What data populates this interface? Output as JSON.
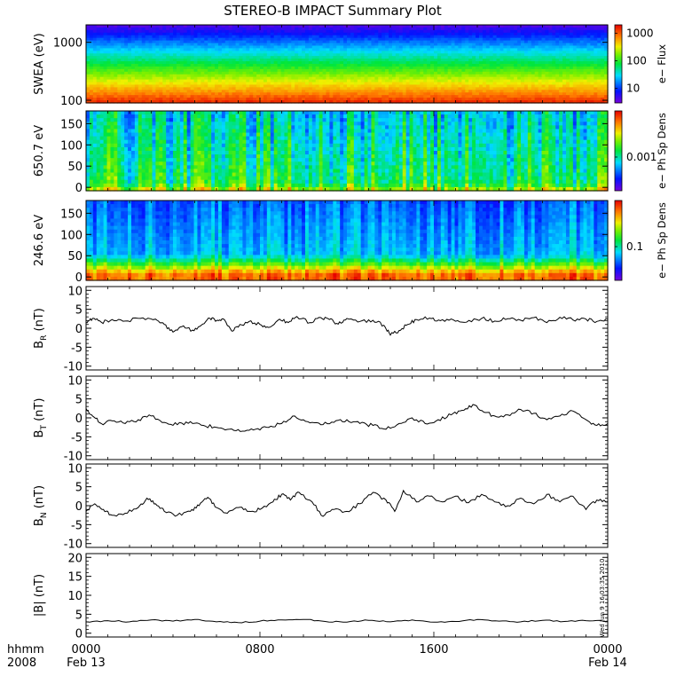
{
  "chart_data": {
    "title": "STEREO-B IMPACT Summary Plot",
    "x_axis": {
      "corner_label_top": "hhmm",
      "corner_label_bottom": "2008",
      "range_hours": [
        0,
        24
      ],
      "ticks": [
        {
          "hour": 0,
          "time": "0000",
          "date": "Feb 13"
        },
        {
          "hour": 8,
          "time": "0800",
          "date": ""
        },
        {
          "hour": 16,
          "time": "1600",
          "date": ""
        },
        {
          "hour": 24,
          "time": "0000",
          "date": "Feb 14"
        }
      ]
    },
    "timestamp": "Wed Jun  9 16:03:35 2010",
    "panels": [
      {
        "type": "heatmap",
        "ylabel": "SWEA (eV)",
        "yscale": "log",
        "ylim": [
          90,
          2000
        ],
        "yticks": [
          {
            "value": 100,
            "label": "100"
          },
          {
            "value": 1000,
            "label": "1000"
          }
        ],
        "colorbar": {
          "label": "e− Flux",
          "scale": "log",
          "range": [
            3,
            2000
          ],
          "ticks": [
            {
              "value": 10,
              "label": "10"
            },
            {
              "value": 100,
              "label": "100"
            },
            {
              "value": 1000,
              "label": "1000"
            }
          ]
        }
      },
      {
        "type": "heatmap",
        "ylabel": "650.7 eV",
        "yscale": "linear",
        "ylim": [
          -8,
          180
        ],
        "yticks": [
          {
            "value": 0,
            "label": "0"
          },
          {
            "value": 50,
            "label": "50"
          },
          {
            "value": 100,
            "label": "100"
          },
          {
            "value": 150,
            "label": "150"
          }
        ],
        "colorbar": {
          "label": "e− Ph Sp Dens",
          "scale": "log",
          "ticks": [
            {
              "value": 0.001,
              "label": "0.001"
            }
          ]
        }
      },
      {
        "type": "heatmap",
        "ylabel": "246.6 eV",
        "yscale": "linear",
        "ylim": [
          -8,
          180
        ],
        "yticks": [
          {
            "value": 0,
            "label": "0"
          },
          {
            "value": 50,
            "label": "50"
          },
          {
            "value": 100,
            "label": "100"
          },
          {
            "value": 150,
            "label": "150"
          }
        ],
        "colorbar": {
          "label": "e− Ph Sp Dens",
          "scale": "log",
          "ticks": [
            {
              "value": 0.1,
              "label": "0.1"
            }
          ]
        }
      },
      {
        "type": "line",
        "ylabel": "B_R (nT)",
        "ylabel_main": "B",
        "ylabel_sub": "R",
        "ylabel_unit": "(nT)",
        "ylim": [
          -11,
          11
        ],
        "yticks": [
          -10,
          -5,
          0,
          5,
          10
        ],
        "series_keypoints": [
          [
            0.0,
            1.5
          ],
          [
            0.3,
            2.6
          ],
          [
            0.7,
            1.6
          ],
          [
            1.2,
            2.3
          ],
          [
            1.8,
            1.9
          ],
          [
            2.5,
            2.6
          ],
          [
            3.2,
            2.4
          ],
          [
            3.6,
            1.0
          ],
          [
            4.0,
            -1.0
          ],
          [
            4.4,
            0.4
          ],
          [
            4.9,
            -0.5
          ],
          [
            5.3,
            0.8
          ],
          [
            5.7,
            2.6
          ],
          [
            6.0,
            2.0
          ],
          [
            6.3,
            2.5
          ],
          [
            6.7,
            -0.7
          ],
          [
            7.0,
            0.3
          ],
          [
            7.5,
            1.8
          ],
          [
            8.0,
            1.0
          ],
          [
            8.4,
            0.2
          ],
          [
            8.9,
            2.4
          ],
          [
            9.3,
            1.5
          ],
          [
            9.7,
            3.1
          ],
          [
            10.3,
            1.5
          ],
          [
            10.8,
            2.8
          ],
          [
            11.2,
            2.3
          ],
          [
            11.6,
            1.1
          ],
          [
            12.0,
            2.6
          ],
          [
            12.6,
            1.8
          ],
          [
            13.2,
            2.1
          ],
          [
            13.7,
            0.8
          ],
          [
            14.0,
            -1.8
          ],
          [
            14.4,
            -0.6
          ],
          [
            14.8,
            1.0
          ],
          [
            15.2,
            2.3
          ],
          [
            15.8,
            2.7
          ],
          [
            16.3,
            2.0
          ],
          [
            16.9,
            2.2
          ],
          [
            17.5,
            1.6
          ],
          [
            18.2,
            2.6
          ],
          [
            18.8,
            1.9
          ],
          [
            19.4,
            2.5
          ],
          [
            20.0,
            2.1
          ],
          [
            20.6,
            2.8
          ],
          [
            21.2,
            1.5
          ],
          [
            21.8,
            2.9
          ],
          [
            22.4,
            2.2
          ],
          [
            23.0,
            2.4
          ],
          [
            23.5,
            1.8
          ],
          [
            24.0,
            2.4
          ]
        ]
      },
      {
        "type": "line",
        "ylabel": "B_T (nT)",
        "ylabel_main": "B",
        "ylabel_sub": "T",
        "ylabel_unit": "(nT)",
        "ylim": [
          -11,
          11
        ],
        "yticks": [
          -10,
          -5,
          0,
          5,
          10
        ],
        "series_keypoints": [
          [
            0.0,
            2.5
          ],
          [
            0.3,
            0.5
          ],
          [
            0.7,
            -1.5
          ],
          [
            1.2,
            -0.8
          ],
          [
            1.8,
            -1.5
          ],
          [
            2.4,
            -0.5
          ],
          [
            3.0,
            0.5
          ],
          [
            3.6,
            -1.2
          ],
          [
            4.2,
            -1.8
          ],
          [
            4.8,
            -1.0
          ],
          [
            5.4,
            -2.0
          ],
          [
            6.0,
            -2.5
          ],
          [
            6.6,
            -3.0
          ],
          [
            7.2,
            -3.5
          ],
          [
            7.8,
            -3.0
          ],
          [
            8.4,
            -2.5
          ],
          [
            9.0,
            -1.5
          ],
          [
            9.6,
            0.5
          ],
          [
            10.2,
            -1.0
          ],
          [
            10.8,
            -1.8
          ],
          [
            11.4,
            -1.2
          ],
          [
            12.0,
            -0.5
          ],
          [
            12.6,
            -1.5
          ],
          [
            13.2,
            -2.0
          ],
          [
            13.8,
            -3.0
          ],
          [
            14.4,
            -1.5
          ],
          [
            15.0,
            0.0
          ],
          [
            15.6,
            -1.5
          ],
          [
            16.2,
            -0.5
          ],
          [
            16.8,
            0.8
          ],
          [
            17.3,
            2.0
          ],
          [
            17.8,
            3.5
          ],
          [
            18.3,
            1.5
          ],
          [
            18.8,
            0.5
          ],
          [
            19.4,
            0.8
          ],
          [
            20.0,
            2.2
          ],
          [
            20.6,
            1.2
          ],
          [
            21.2,
            -0.5
          ],
          [
            21.8,
            0.5
          ],
          [
            22.4,
            1.8
          ],
          [
            23.0,
            -0.5
          ],
          [
            23.5,
            -2.0
          ],
          [
            24.0,
            -1.5
          ]
        ]
      },
      {
        "type": "line",
        "ylabel": "B_N (nT)",
        "ylabel_main": "B",
        "ylabel_sub": "N",
        "ylabel_unit": "(nT)",
        "ylim": [
          -11,
          11
        ],
        "yticks": [
          -10,
          -5,
          0,
          5,
          10
        ],
        "series_keypoints": [
          [
            0.0,
            -1.5
          ],
          [
            0.4,
            0.5
          ],
          [
            0.8,
            -1.0
          ],
          [
            1.2,
            -2.5
          ],
          [
            1.8,
            -2.0
          ],
          [
            2.4,
            -0.5
          ],
          [
            2.8,
            2.0
          ],
          [
            3.2,
            0.5
          ],
          [
            3.6,
            -1.5
          ],
          [
            4.2,
            -2.5
          ],
          [
            4.8,
            -1.5
          ],
          [
            5.2,
            0.0
          ],
          [
            5.6,
            2.2
          ],
          [
            6.0,
            -0.5
          ],
          [
            6.5,
            -2.0
          ],
          [
            7.0,
            -0.5
          ],
          [
            7.5,
            -1.5
          ],
          [
            8.0,
            -1.0
          ],
          [
            8.6,
            1.0
          ],
          [
            9.0,
            3.0
          ],
          [
            9.4,
            1.5
          ],
          [
            9.8,
            3.5
          ],
          [
            10.4,
            1.0
          ],
          [
            10.9,
            -2.8
          ],
          [
            11.4,
            -1.0
          ],
          [
            12.0,
            -1.5
          ],
          [
            12.6,
            0.5
          ],
          [
            13.2,
            3.5
          ],
          [
            13.8,
            1.5
          ],
          [
            14.2,
            -1.5
          ],
          [
            14.6,
            4.0
          ],
          [
            15.2,
            1.0
          ],
          [
            15.8,
            2.5
          ],
          [
            16.4,
            1.0
          ],
          [
            17.0,
            2.5
          ],
          [
            17.6,
            0.8
          ],
          [
            18.2,
            3.0
          ],
          [
            18.8,
            1.0
          ],
          [
            19.4,
            0.0
          ],
          [
            20.0,
            2.0
          ],
          [
            20.6,
            0.5
          ],
          [
            21.2,
            3.0
          ],
          [
            21.8,
            1.0
          ],
          [
            22.4,
            2.5
          ],
          [
            23.0,
            -1.0
          ],
          [
            23.5,
            1.5
          ],
          [
            24.0,
            1.0
          ]
        ]
      },
      {
        "type": "line",
        "ylabel": "|B| (nT)",
        "ylabel_main": "|B|",
        "ylabel_sub": "",
        "ylabel_unit": "(nT)",
        "ylim": [
          -1,
          21
        ],
        "yticks": [
          0,
          5,
          10,
          15,
          20
        ],
        "series_keypoints": [
          [
            0.0,
            3.0
          ],
          [
            1.0,
            3.3
          ],
          [
            2.0,
            3.0
          ],
          [
            3.0,
            3.5
          ],
          [
            4.0,
            3.2
          ],
          [
            5.0,
            3.6
          ],
          [
            6.0,
            3.0
          ],
          [
            7.0,
            2.8
          ],
          [
            8.0,
            3.2
          ],
          [
            9.0,
            3.5
          ],
          [
            10.0,
            3.6
          ],
          [
            11.0,
            3.1
          ],
          [
            12.0,
            2.9
          ],
          [
            13.0,
            3.4
          ],
          [
            14.0,
            3.0
          ],
          [
            15.0,
            3.5
          ],
          [
            16.0,
            2.9
          ],
          [
            17.0,
            3.1
          ],
          [
            18.0,
            3.6
          ],
          [
            19.0,
            3.2
          ],
          [
            20.0,
            3.0
          ],
          [
            21.0,
            3.4
          ],
          [
            22.0,
            3.1
          ],
          [
            23.0,
            3.3
          ],
          [
            24.0,
            3.2
          ]
        ]
      }
    ]
  }
}
